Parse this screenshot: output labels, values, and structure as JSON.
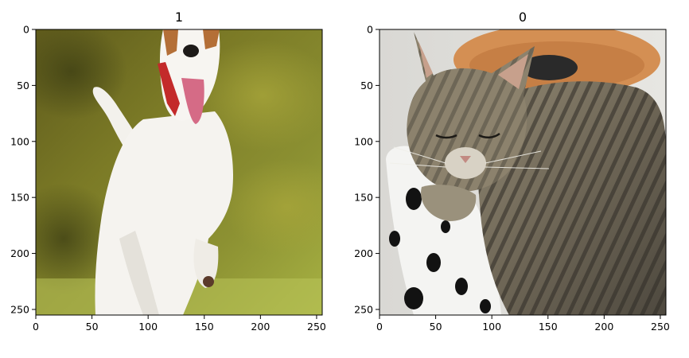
{
  "chart_data": [
    {
      "type": "image",
      "title": "1",
      "image_content": "white-and-brown dog running on grass, mouth open, red collar",
      "xlim": [
        0,
        255
      ],
      "ylim": [
        255,
        0
      ],
      "xticks": [
        0,
        50,
        100,
        150,
        200,
        250
      ],
      "yticks": [
        0,
        50,
        100,
        150,
        200,
        250
      ],
      "grid": false
    },
    {
      "type": "image",
      "title": "0",
      "image_content": "grey tabby cat with eyes closed resting on a black-and-white spotted cushion",
      "xlim": [
        0,
        255
      ],
      "ylim": [
        255,
        0
      ],
      "xticks": [
        0,
        50,
        100,
        150,
        200,
        250
      ],
      "yticks": [
        0,
        50,
        100,
        150,
        200,
        250
      ],
      "grid": false
    }
  ]
}
